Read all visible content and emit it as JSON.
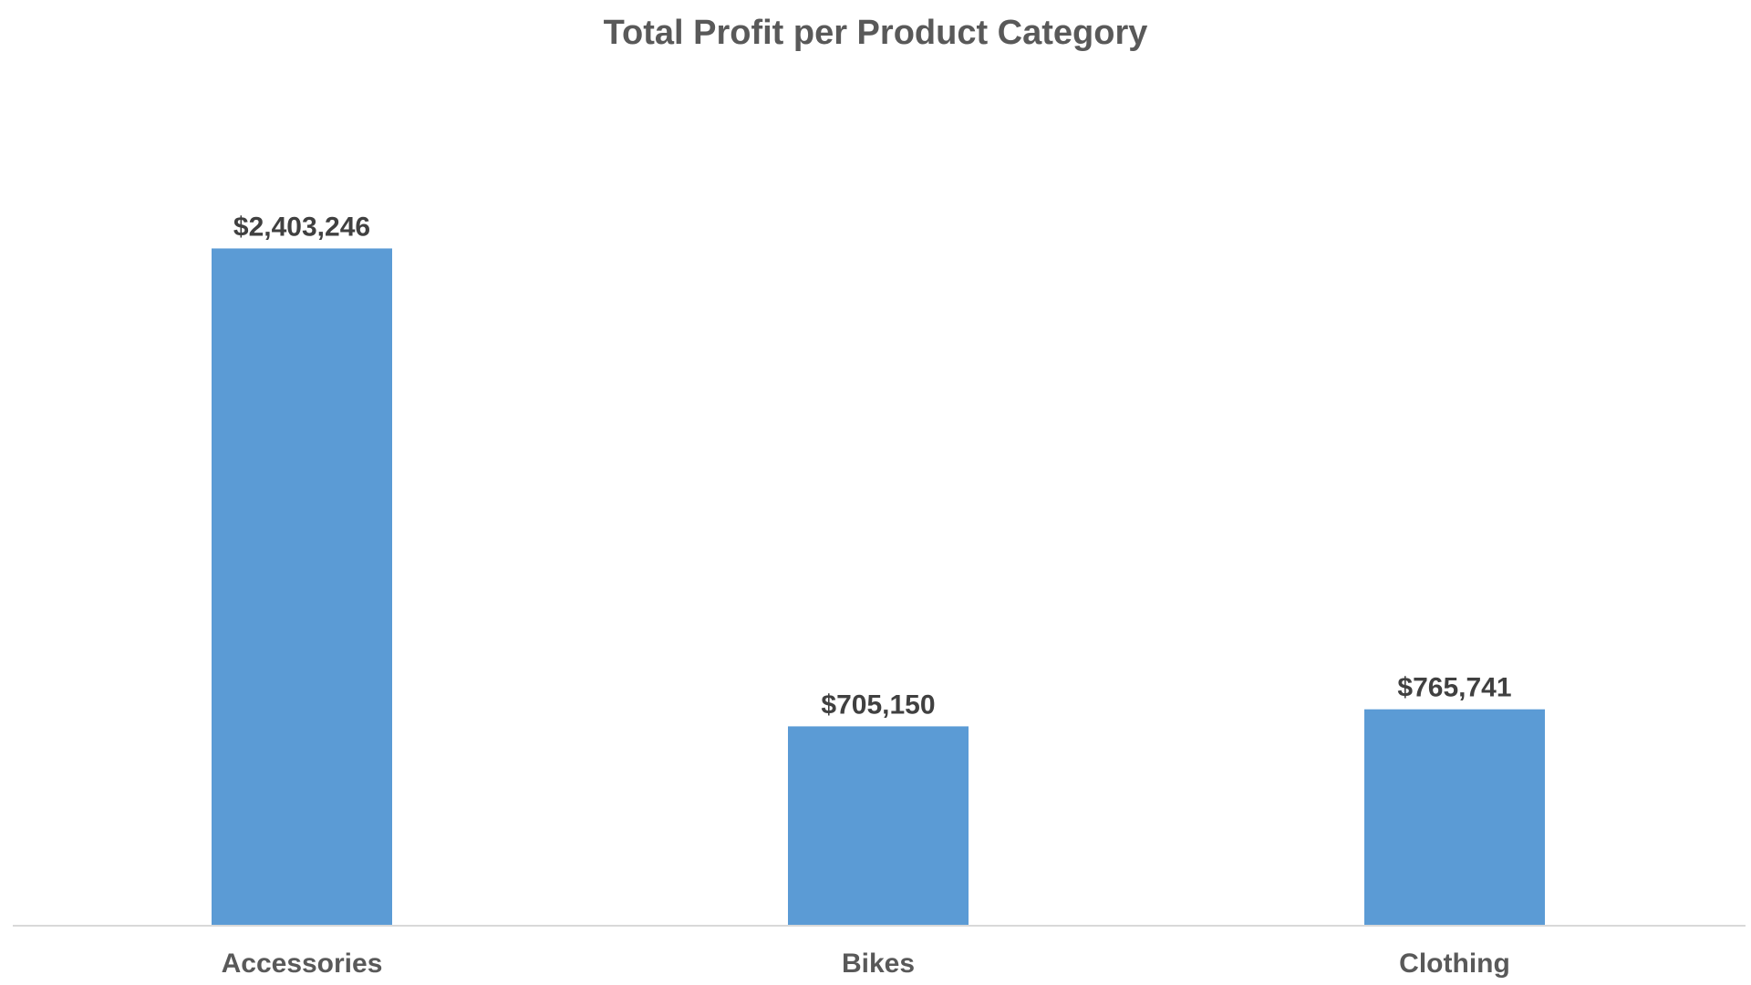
{
  "chart_data": {
    "type": "bar",
    "title": "Total Profit per Product Category",
    "categories": [
      "Accessories",
      "Bikes",
      "Clothing"
    ],
    "values": [
      2403246,
      705150,
      765741
    ],
    "data_labels": [
      "$2,403,246",
      "$705,150",
      "$765,741"
    ],
    "xlabel": "",
    "ylabel": "",
    "ylim": [
      0,
      2800000
    ],
    "grid": false,
    "legend": "none",
    "bar_color": "#5B9BD5",
    "axis_color": "#D9D9D9"
  }
}
